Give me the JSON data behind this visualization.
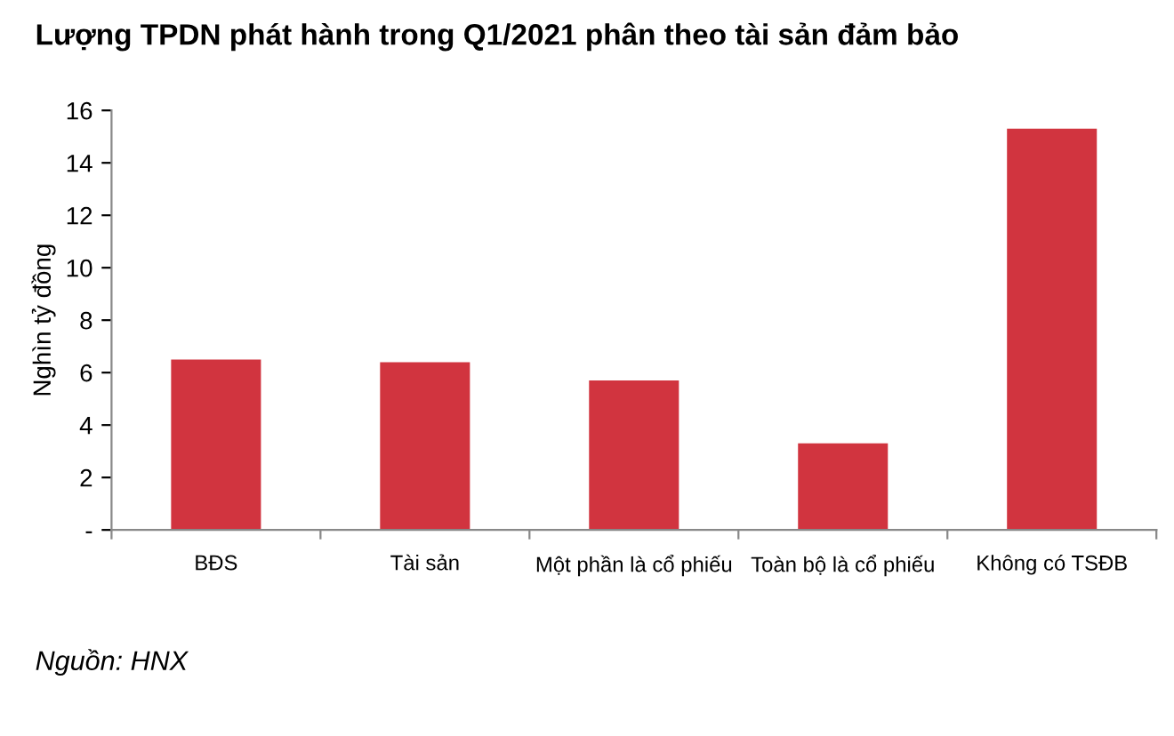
{
  "chart_data": {
    "type": "bar",
    "title": "Lượng TPDN phát hành trong Q1/2021 phân theo tài sản đảm bảo",
    "ylabel": "Nghìn tỷ đồng",
    "categories": [
      "BĐS",
      "Tài sản",
      "Một phần là cổ phiếu",
      "Toàn bộ là cổ phiếu",
      "Không có TSĐB"
    ],
    "values": [
      6.5,
      6.4,
      5.7,
      3.3,
      15.3
    ],
    "color": "#d1343f",
    "ylim": [
      0,
      16
    ],
    "yticks": [
      {
        "value": 0,
        "label": "-"
      },
      2,
      4,
      6,
      8,
      10,
      12,
      14,
      16
    ],
    "grid": false,
    "annotations": [
      "Nguồn: HNX"
    ]
  }
}
